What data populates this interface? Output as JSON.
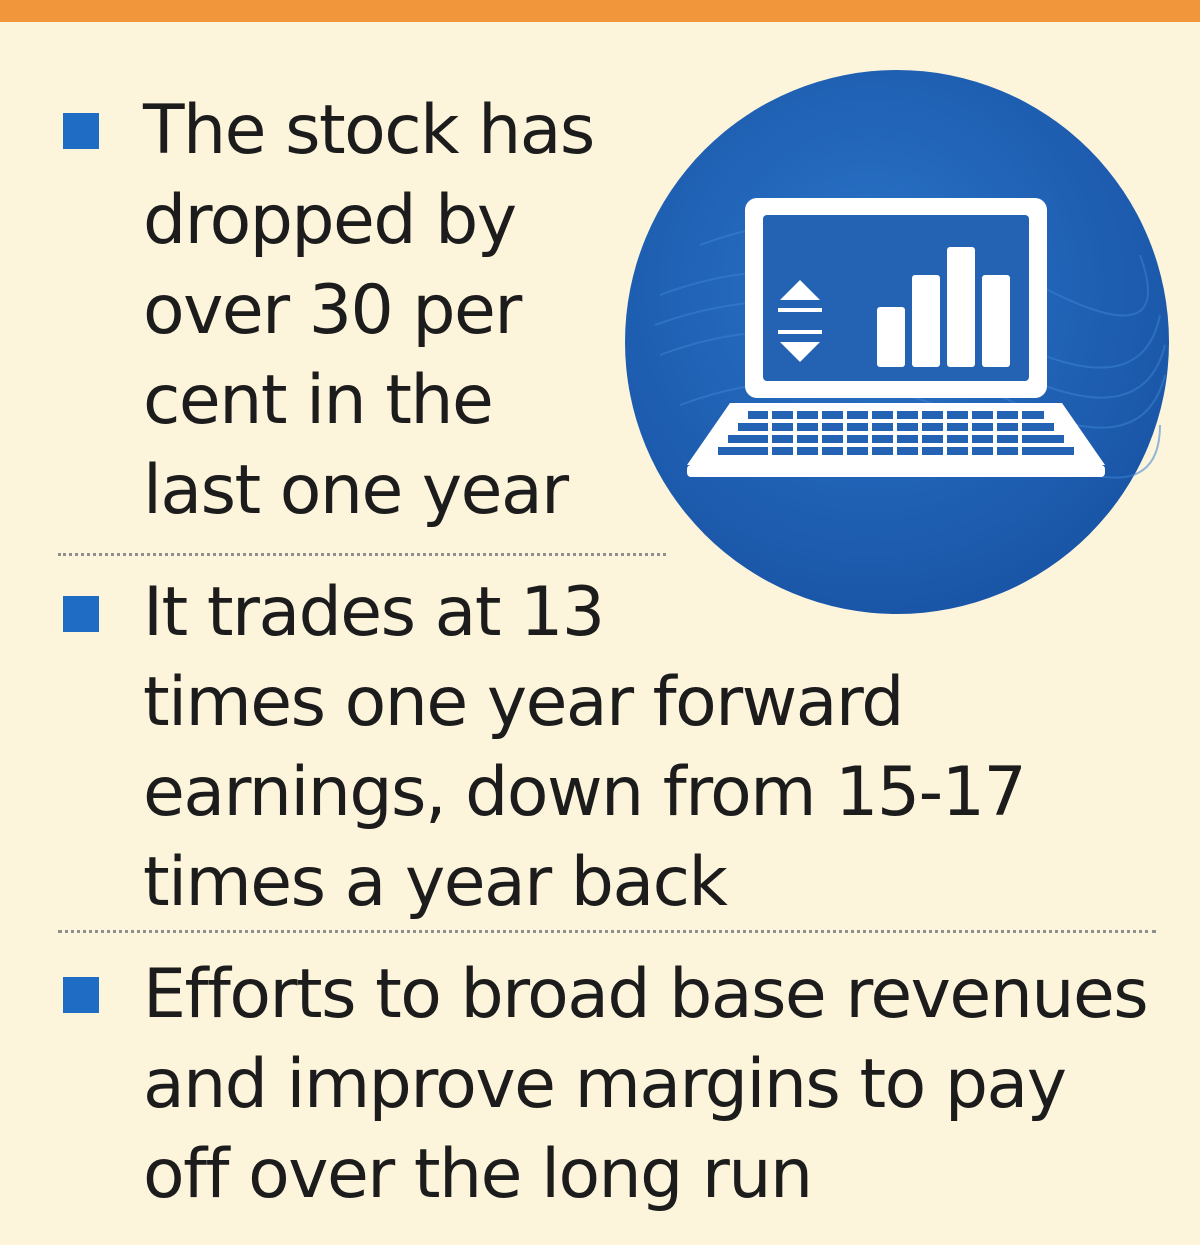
{
  "bullets": [
    {
      "lines": [
        "The stock has",
        "dropped by",
        "over 30 per",
        "cent in the",
        "last one year"
      ]
    },
    {
      "lines": [
        "It trades at 13",
        "times one year forward",
        "earnings, down from 15-17",
        "times a year back"
      ]
    },
    {
      "lines": [
        "Efforts to broad base revenues",
        "and improve margins  to pay",
        "off over the long run"
      ]
    }
  ],
  "icon": "laptop-with-bar-chart-icon",
  "colors": {
    "accent_bar": "#f2963b",
    "bullet": "#1e6cc4",
    "circle": "#1f63b8",
    "background": "#fdf4dc"
  }
}
